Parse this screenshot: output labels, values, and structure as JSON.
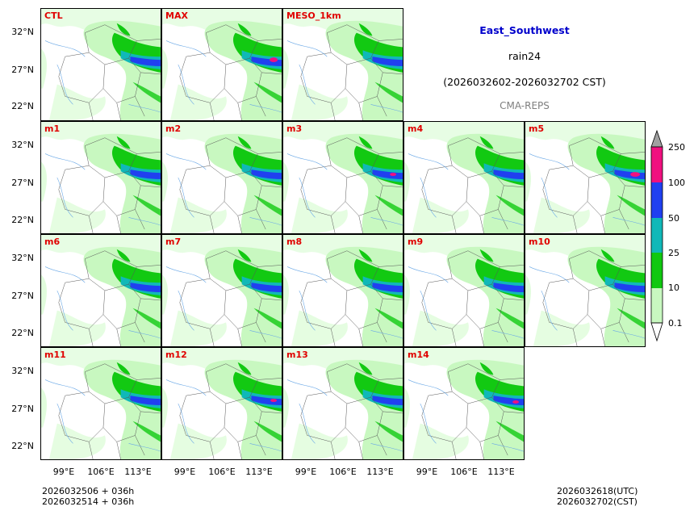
{
  "region": "East_Southwest",
  "variable": "rain24",
  "period": "(2026032602-2026032702 CST)",
  "system": "CMA-REPS",
  "panels": [
    "CTL",
    "MAX",
    "MESO_1km",
    "m1",
    "m2",
    "m3",
    "m4",
    "m5",
    "m6",
    "m7",
    "m8",
    "m9",
    "m10",
    "m11",
    "m12",
    "m13",
    "m14"
  ],
  "lat_ticks": [
    "32°N",
    "27°N",
    "22°N"
  ],
  "lon_ticks": [
    "99°E",
    "106°E",
    "113°E"
  ],
  "colorbar": {
    "levels": [
      "250",
      "100",
      "50",
      "25",
      "10",
      "0.1"
    ],
    "colors": [
      "#f0107f",
      "#2040f0",
      "#10b8b8",
      "#10c810",
      "#c8f8c0",
      "#a0a0a0"
    ]
  },
  "footer": {
    "init_utc": "2026032506  +  036h",
    "init_cst": "2026032514  +  036h",
    "valid_utc": "2026032618(UTC)",
    "valid_cst": "2026032702(CST)"
  },
  "colors": {
    "title": "#0000cc",
    "label": "#e00000",
    "system": "#7f7f7f"
  }
}
